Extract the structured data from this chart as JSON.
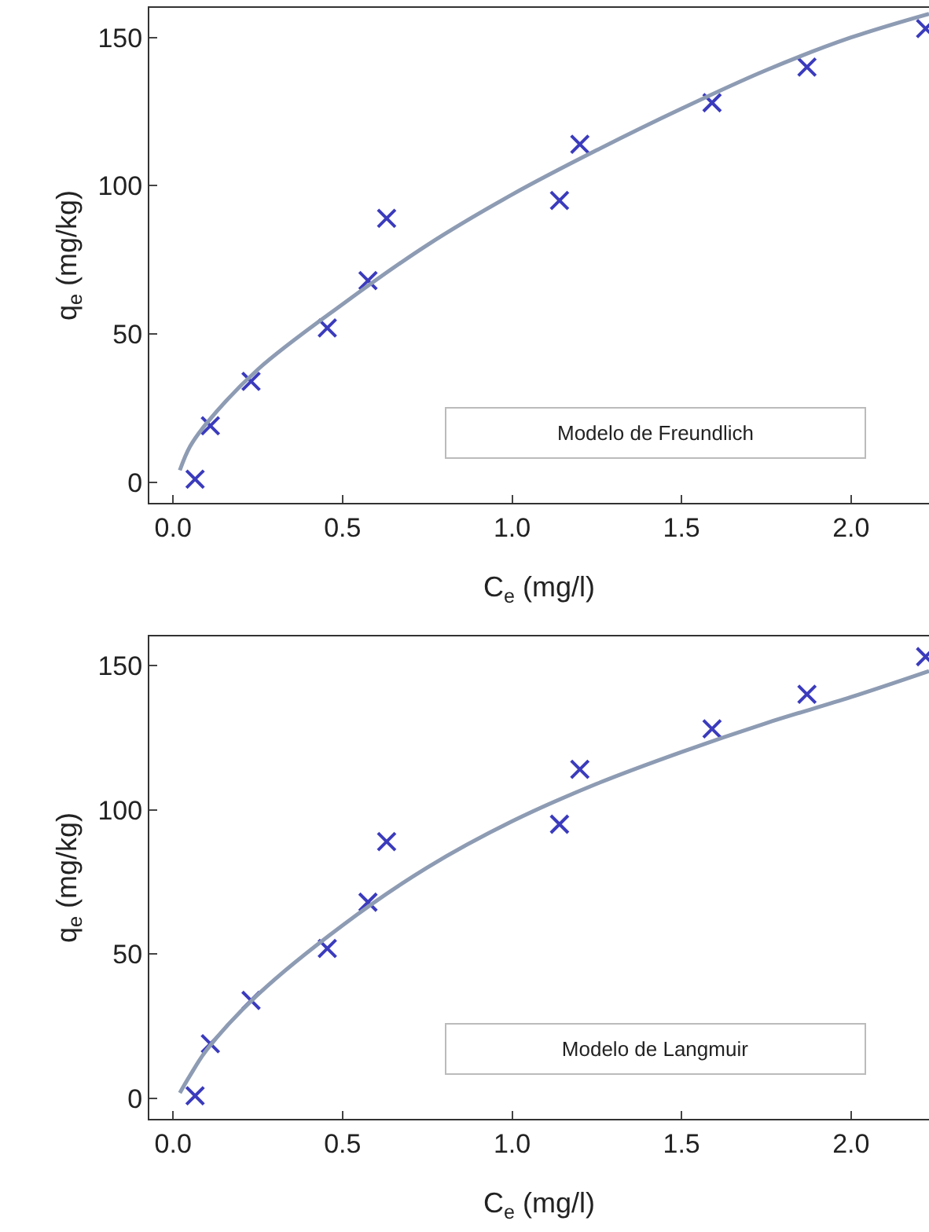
{
  "chart_data": [
    {
      "type": "scatter",
      "xlabel": "C$_{e}$ (mg/l)",
      "ylabel": "q$_{e}$ (mg/kg)",
      "xlim": [
        -0.07,
        2.23
      ],
      "ylim": [
        -7,
        160
      ],
      "xticks": [
        {
          "value": 0,
          "label": "0.0"
        },
        {
          "value": 0.5,
          "label": "0.5"
        },
        {
          "value": 1,
          "label": "1.0"
        },
        {
          "value": 1.5,
          "label": "1.5"
        },
        {
          "value": 2,
          "label": "2.0"
        }
      ],
      "yticks": [
        0,
        50,
        100,
        150
      ],
      "annotations": [
        "Modelo de Freundlich"
      ],
      "series": [
        {
          "marker": "cross",
          "color": "#3b3bbd",
          "x": [
            0.065,
            0.11,
            0.23,
            0.455,
            0.575,
            0.63,
            1.14,
            1.2,
            1.59,
            1.87,
            2.22
          ],
          "values": [
            1,
            19,
            34,
            52,
            68,
            89,
            95,
            114,
            128,
            140,
            153
          ]
        },
        {
          "type": "line",
          "color": "#8d9bb3",
          "x": [
            0.02,
            0.05,
            0.1,
            0.25,
            0.5,
            0.75,
            1.0,
            1.25,
            1.5,
            1.75,
            2.0,
            2.23
          ],
          "values": [
            4,
            12,
            20,
            38,
            60,
            80,
            97,
            112,
            126,
            139,
            150,
            158
          ]
        }
      ]
    },
    {
      "type": "scatter",
      "xlabel": "C$_{e}$ (mg/l)",
      "ylabel": "q$_{e}$ (mg/kg)",
      "xlim": [
        -0.07,
        2.23
      ],
      "ylim": [
        -7,
        160
      ],
      "xticks": [
        {
          "value": 0,
          "label": "0.0"
        },
        {
          "value": 0.5,
          "label": "0.5"
        },
        {
          "value": 1,
          "label": "1.0"
        },
        {
          "value": 1.5,
          "label": "1.5"
        },
        {
          "value": 2,
          "label": "2.0"
        }
      ],
      "yticks": [
        0,
        50,
        100,
        150
      ],
      "annotations": [
        "Modelo de Langmuir"
      ],
      "series": [
        {
          "marker": "cross",
          "color": "#3b3bbd",
          "x": [
            0.065,
            0.11,
            0.23,
            0.455,
            0.575,
            0.63,
            1.14,
            1.2,
            1.59,
            1.87,
            2.22
          ],
          "values": [
            1,
            19,
            34,
            52,
            68,
            89,
            95,
            114,
            128,
            140,
            153
          ]
        },
        {
          "type": "line",
          "color": "#8d9bb3",
          "x": [
            0.02,
            0.05,
            0.1,
            0.25,
            0.5,
            0.75,
            1.0,
            1.25,
            1.5,
            1.75,
            2.0,
            2.23
          ],
          "values": [
            2,
            8,
            17,
            36,
            60,
            80,
            96,
            109,
            120,
            130,
            139,
            148
          ]
        }
      ]
    }
  ]
}
